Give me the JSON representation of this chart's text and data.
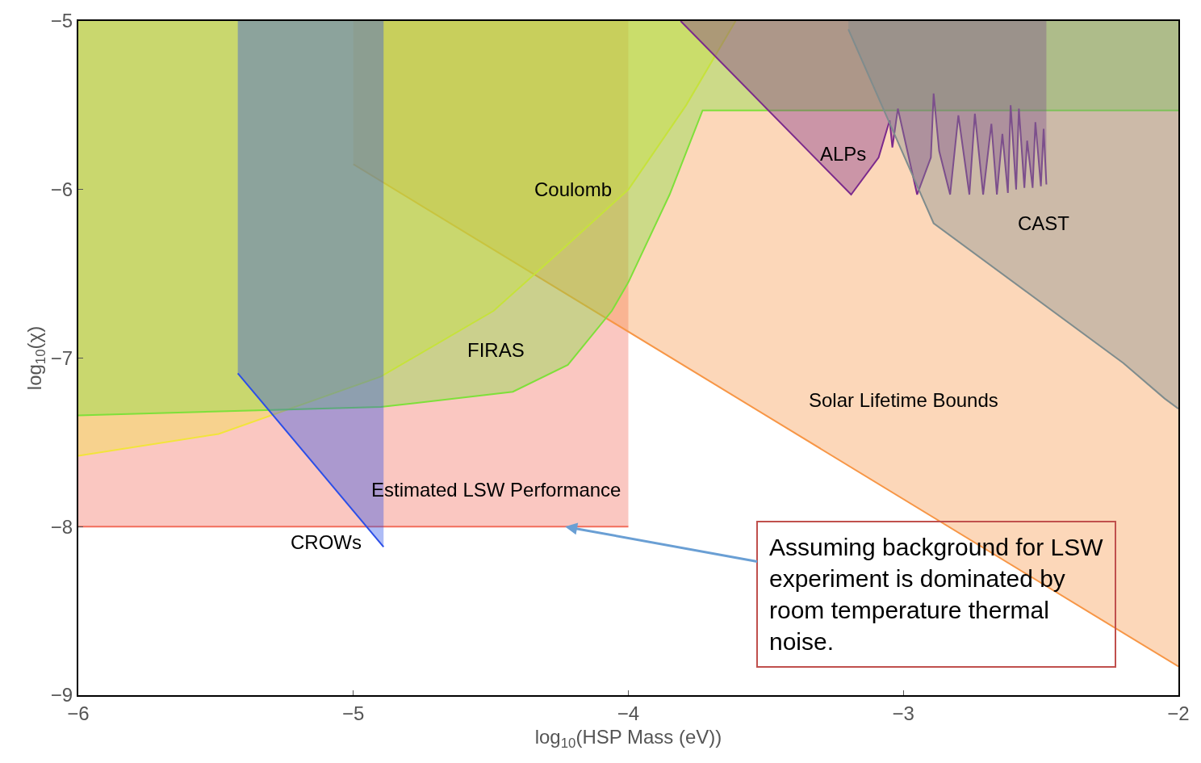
{
  "chart_data": {
    "type": "area",
    "xlabel": "log$_{10}$(HSP Mass (eV))",
    "ylabel": "log$_{10}$(χ)",
    "xlim": [
      -6,
      -2
    ],
    "ylim": [
      -9,
      -5
    ],
    "xticks": [
      {
        "value": -6,
        "label": "−6"
      },
      {
        "value": -5,
        "label": "−5"
      },
      {
        "value": -4,
        "label": "−4"
      },
      {
        "value": -3,
        "label": "−3"
      },
      {
        "value": -2,
        "label": "−2"
      }
    ],
    "yticks": [
      {
        "value": -9,
        "label": "−9"
      },
      {
        "value": -8,
        "label": "−8"
      },
      {
        "value": -7,
        "label": "−7"
      },
      {
        "value": -6,
        "label": "−6"
      },
      {
        "value": -5,
        "label": "−5"
      }
    ],
    "series": [
      {
        "name": "Estimated LSW Performance",
        "color": "#f26d5b",
        "x": [
          -6,
          -4
        ],
        "values": [
          -8,
          -8
        ]
      },
      {
        "name": "Solar Lifetime Bounds",
        "color": "#f79646",
        "x": [
          -5,
          -2
        ],
        "values": [
          -5.85,
          -8.83
        ]
      },
      {
        "name": "Coulomb",
        "color": "#f2e43c",
        "x": [
          -6,
          -5.49,
          -4.9,
          -4.49,
          -4.23,
          -4.0,
          -3.79,
          -3.61
        ],
        "values": [
          -7.58,
          -7.45,
          -7.11,
          -6.72,
          -6.34,
          -6.0,
          -5.5,
          -5.0
        ]
      },
      {
        "name": "FIRAS",
        "color": "#7ee03a",
        "x": [
          -6,
          -4.9,
          -4.42,
          -4.22,
          -4.06,
          -4.0,
          -3.85,
          -3.73,
          -2
        ],
        "values": [
          -7.34,
          -7.29,
          -7.2,
          -7.04,
          -6.72,
          -6.55,
          -6.03,
          -5.53,
          -5.53
        ]
      },
      {
        "name": "CROWs",
        "color": "#2b4ee8",
        "x": [
          -5.42,
          -4.89
        ],
        "values": [
          -7.09,
          -8.12
        ]
      },
      {
        "name": "ALPs",
        "color": "#7b2a8c",
        "x": [
          -3.81,
          -3.19,
          -3.09,
          -3.05,
          -3.04,
          -3.02,
          -2.95,
          -2.9,
          -2.89,
          -2.87,
          -2.83,
          -2.8,
          -2.76,
          -2.74,
          -2.71,
          -2.68,
          -2.66,
          -2.64,
          -2.62,
          -2.61,
          -2.59,
          -2.58,
          -2.56,
          -2.55,
          -2.53,
          -2.52,
          -2.5,
          -2.49,
          -2.48
        ],
        "values": [
          -5.0,
          -6.03,
          -5.81,
          -5.59,
          -5.75,
          -5.52,
          -6.03,
          -5.81,
          -5.43,
          -5.77,
          -6.03,
          -5.56,
          -6.03,
          -5.55,
          -6.03,
          -5.61,
          -6.03,
          -5.67,
          -6.02,
          -5.5,
          -6.0,
          -5.52,
          -5.99,
          -5.71,
          -5.99,
          -5.6,
          -5.98,
          -5.64,
          -5.97
        ]
      },
      {
        "name": "CAST",
        "color": "#7f8c8d",
        "x": [
          -3.2,
          -2.89,
          -2.2,
          -2.05,
          -2.0
        ],
        "values": [
          -5.05,
          -6.2,
          -7.03,
          -7.24,
          -7.3
        ]
      }
    ],
    "annotations": [
      {
        "text": "Assuming background for LSW experiment is dominated by room temperature thermal noise.",
        "x": -4.23,
        "y": -8.0
      }
    ]
  }
}
